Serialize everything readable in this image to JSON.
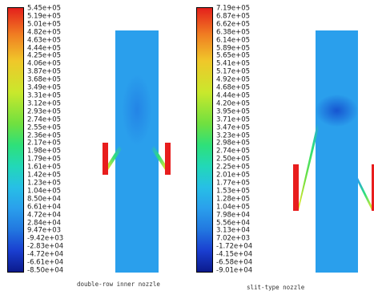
{
  "panels": [
    {
      "caption": "double-row inner nozzle",
      "colorbar_labels": [
        "5.45e+05",
        "5.19e+05",
        "5.01e+05",
        "4.82e+05",
        "4.63e+05",
        "4.44e+05",
        "4.25e+05",
        "4.06e+05",
        "3.87e+05",
        "3.68e+05",
        "3.49e+05",
        "3.31e+05",
        "3.12e+05",
        "2.93e+05",
        "2.74e+05",
        "2.55e+05",
        "2.36e+05",
        "2.17e+05",
        "1.98e+05",
        "1.79e+05",
        "1.61e+05",
        "1.42e+05",
        "1.23e+05",
        "1.04e+05",
        "8.50e+04",
        "6.61e+04",
        "4.72e+04",
        "2.84e+04",
        "9.47e+03",
        "-9.42e+03",
        "-2.83e+04",
        "-4.72e+04",
        "-6.61e+04",
        "-8.50e+04"
      ]
    },
    {
      "caption": "slit-type nozzle",
      "colorbar_labels": [
        "7.19e+05",
        "6.87e+05",
        "6.62e+05",
        "6.38e+05",
        "6.14e+05",
        "5.89e+05",
        "5.65e+05",
        "5.41e+05",
        "5.17e+05",
        "4.92e+05",
        "4.68e+05",
        "4.44e+05",
        "4.20e+05",
        "3.95e+05",
        "3.71e+05",
        "3.47e+05",
        "3.23e+05",
        "2.98e+05",
        "2.74e+05",
        "2.50e+05",
        "2.25e+05",
        "2.01e+05",
        "1.77e+05",
        "1.53e+05",
        "1.28e+05",
        "1.04e+05",
        "7.98e+04",
        "5.56e+04",
        "3.13e+04",
        "7.02e+03",
        "-1.72e+04",
        "-4.15e+04",
        "-6.58e+04",
        "-9.01e+04"
      ]
    }
  ],
  "colors": {
    "fluid": "#2a9fec",
    "nozzle": "#e81d1d",
    "colormap": [
      "#e4201c",
      "#f5a623",
      "#e8e82a",
      "#9be33a",
      "#2ee07a",
      "#26d4d4",
      "#2a9fec",
      "#1a3fd0",
      "#0b1a8c"
    ]
  }
}
